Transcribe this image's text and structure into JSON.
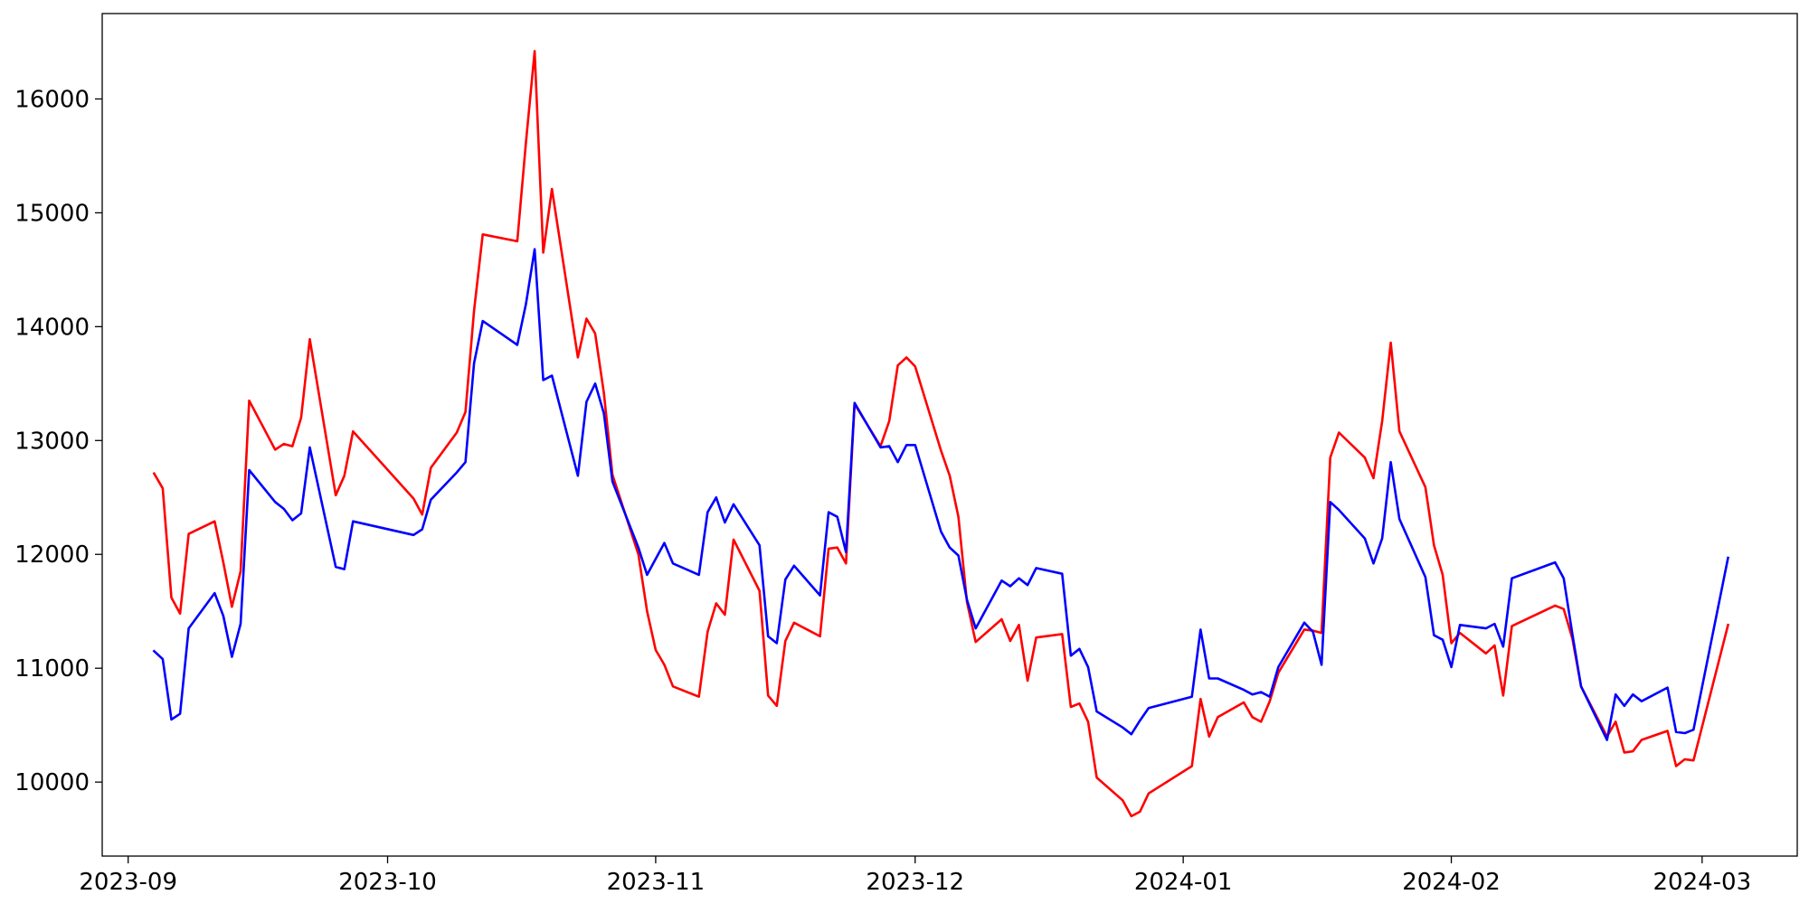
{
  "chart_data": {
    "type": "line",
    "title": "",
    "xlabel": "",
    "ylabel": "",
    "x_range": [
      "2023-08-29",
      "2024-03-12"
    ],
    "ylim": [
      9350,
      16750
    ],
    "grid": false,
    "legend": "none",
    "x_ticks": [
      "2023-09-01",
      "2023-10-01",
      "2023-11-01",
      "2023-12-01",
      "2024-01-01",
      "2024-02-01",
      "2024-03-01"
    ],
    "x_tick_labels": [
      "2023-09",
      "2023-10",
      "2023-11",
      "2023-12",
      "2024-01",
      "2024-02",
      "2024-03"
    ],
    "y_ticks": [
      10000,
      11000,
      12000,
      13000,
      14000,
      15000,
      16000
    ],
    "y_tick_labels": [
      "10000",
      "11000",
      "12000",
      "13000",
      "14000",
      "15000",
      "16000"
    ],
    "series": [
      {
        "color": "#ff0000",
        "points": [
          [
            "2023-09-04",
            12710
          ],
          [
            "2023-09-05",
            12580
          ],
          [
            "2023-09-06",
            11620
          ],
          [
            "2023-09-07",
            11480
          ],
          [
            "2023-09-08",
            12180
          ],
          [
            "2023-09-11",
            12290
          ],
          [
            "2023-09-12",
            11930
          ],
          [
            "2023-09-13",
            11540
          ],
          [
            "2023-09-14",
            11850
          ],
          [
            "2023-09-15",
            13350
          ],
          [
            "2023-09-18",
            12920
          ],
          [
            "2023-09-19",
            12970
          ],
          [
            "2023-09-20",
            12950
          ],
          [
            "2023-09-21",
            13200
          ],
          [
            "2023-09-22",
            13890
          ],
          [
            "2023-09-25",
            12520
          ],
          [
            "2023-09-26",
            12690
          ],
          [
            "2023-09-27",
            13080
          ],
          [
            "2023-10-04",
            12490
          ],
          [
            "2023-10-05",
            12350
          ],
          [
            "2023-10-06",
            12760
          ],
          [
            "2023-10-09",
            13070
          ],
          [
            "2023-10-10",
            13250
          ],
          [
            "2023-10-11",
            14140
          ],
          [
            "2023-10-12",
            14810
          ],
          [
            "2023-10-16",
            14750
          ],
          [
            "2023-10-17",
            15620
          ],
          [
            "2023-10-18",
            16420
          ],
          [
            "2023-10-19",
            14650
          ],
          [
            "2023-10-20",
            15210
          ],
          [
            "2023-10-23",
            13730
          ],
          [
            "2023-10-24",
            14070
          ],
          [
            "2023-10-25",
            13940
          ],
          [
            "2023-10-26",
            13420
          ],
          [
            "2023-10-27",
            12700
          ],
          [
            "2023-10-30",
            12000
          ],
          [
            "2023-10-31",
            11500
          ],
          [
            "2023-11-01",
            11160
          ],
          [
            "2023-11-02",
            11030
          ],
          [
            "2023-11-03",
            10840
          ],
          [
            "2023-11-06",
            10750
          ],
          [
            "2023-11-07",
            11320
          ],
          [
            "2023-11-08",
            11570
          ],
          [
            "2023-11-09",
            11470
          ],
          [
            "2023-11-10",
            12130
          ],
          [
            "2023-11-13",
            11680
          ],
          [
            "2023-11-14",
            10760
          ],
          [
            "2023-11-15",
            10670
          ],
          [
            "2023-11-16",
            11240
          ],
          [
            "2023-11-17",
            11400
          ],
          [
            "2023-11-20",
            11280
          ],
          [
            "2023-11-21",
            12050
          ],
          [
            "2023-11-22",
            12060
          ],
          [
            "2023-11-23",
            11920
          ],
          [
            "2023-11-24",
            13320
          ],
          [
            "2023-11-27",
            12950
          ],
          [
            "2023-11-28",
            13170
          ],
          [
            "2023-11-29",
            13660
          ],
          [
            "2023-11-30",
            13730
          ],
          [
            "2023-12-01",
            13650
          ],
          [
            "2023-12-04",
            12910
          ],
          [
            "2023-12-05",
            12690
          ],
          [
            "2023-12-06",
            12330
          ],
          [
            "2023-12-07",
            11580
          ],
          [
            "2023-12-08",
            11230
          ],
          [
            "2023-12-11",
            11430
          ],
          [
            "2023-12-12",
            11240
          ],
          [
            "2023-12-13",
            11380
          ],
          [
            "2023-12-14",
            10890
          ],
          [
            "2023-12-15",
            11270
          ],
          [
            "2023-12-18",
            11300
          ],
          [
            "2023-12-19",
            10660
          ],
          [
            "2023-12-20",
            10690
          ],
          [
            "2023-12-21",
            10530
          ],
          [
            "2023-12-22",
            10040
          ],
          [
            "2023-12-25",
            9840
          ],
          [
            "2023-12-26",
            9700
          ],
          [
            "2023-12-27",
            9740
          ],
          [
            "2023-12-28",
            9900
          ],
          [
            "2024-01-02",
            10140
          ],
          [
            "2024-01-03",
            10730
          ],
          [
            "2024-01-04",
            10400
          ],
          [
            "2024-01-05",
            10570
          ],
          [
            "2024-01-08",
            10700
          ],
          [
            "2024-01-09",
            10570
          ],
          [
            "2024-01-10",
            10530
          ],
          [
            "2024-01-11",
            10710
          ],
          [
            "2024-01-12",
            10960
          ],
          [
            "2024-01-15",
            11340
          ],
          [
            "2024-01-16",
            11330
          ],
          [
            "2024-01-17",
            11310
          ],
          [
            "2024-01-18",
            12850
          ],
          [
            "2024-01-19",
            13070
          ],
          [
            "2024-01-22",
            12850
          ],
          [
            "2024-01-23",
            12670
          ],
          [
            "2024-01-24",
            13170
          ],
          [
            "2024-01-25",
            13860
          ],
          [
            "2024-01-26",
            13080
          ],
          [
            "2024-01-29",
            12590
          ],
          [
            "2024-01-30",
            12080
          ],
          [
            "2024-01-31",
            11820
          ],
          [
            "2024-02-01",
            11220
          ],
          [
            "2024-02-02",
            11310
          ],
          [
            "2024-02-05",
            11130
          ],
          [
            "2024-02-06",
            11200
          ],
          [
            "2024-02-07",
            10760
          ],
          [
            "2024-02-08",
            11370
          ],
          [
            "2024-02-13",
            11550
          ],
          [
            "2024-02-14",
            11520
          ],
          [
            "2024-02-15",
            11260
          ],
          [
            "2024-02-16",
            10840
          ],
          [
            "2024-02-19",
            10400
          ],
          [
            "2024-02-20",
            10530
          ],
          [
            "2024-02-21",
            10260
          ],
          [
            "2024-02-22",
            10270
          ],
          [
            "2024-02-23",
            10370
          ],
          [
            "2024-02-26",
            10450
          ],
          [
            "2024-02-27",
            10140
          ],
          [
            "2024-02-28",
            10200
          ],
          [
            "2024-02-29",
            10190
          ],
          [
            "2024-03-04",
            11380
          ]
        ]
      },
      {
        "color": "#0000ff",
        "points": [
          [
            "2023-09-04",
            11150
          ],
          [
            "2023-09-05",
            11080
          ],
          [
            "2023-09-06",
            10550
          ],
          [
            "2023-09-07",
            10600
          ],
          [
            "2023-09-08",
            11350
          ],
          [
            "2023-09-11",
            11660
          ],
          [
            "2023-09-12",
            11460
          ],
          [
            "2023-09-13",
            11100
          ],
          [
            "2023-09-14",
            11390
          ],
          [
            "2023-09-15",
            12740
          ],
          [
            "2023-09-18",
            12460
          ],
          [
            "2023-09-19",
            12400
          ],
          [
            "2023-09-20",
            12300
          ],
          [
            "2023-09-21",
            12360
          ],
          [
            "2023-09-22",
            12940
          ],
          [
            "2023-09-25",
            11890
          ],
          [
            "2023-09-26",
            11870
          ],
          [
            "2023-09-27",
            12290
          ],
          [
            "2023-10-04",
            12170
          ],
          [
            "2023-10-05",
            12220
          ],
          [
            "2023-10-06",
            12480
          ],
          [
            "2023-10-09",
            12720
          ],
          [
            "2023-10-10",
            12810
          ],
          [
            "2023-10-11",
            13680
          ],
          [
            "2023-10-12",
            14050
          ],
          [
            "2023-10-16",
            13840
          ],
          [
            "2023-10-17",
            14200
          ],
          [
            "2023-10-18",
            14680
          ],
          [
            "2023-10-19",
            13530
          ],
          [
            "2023-10-20",
            13570
          ],
          [
            "2023-10-23",
            12690
          ],
          [
            "2023-10-24",
            13340
          ],
          [
            "2023-10-25",
            13500
          ],
          [
            "2023-10-26",
            13240
          ],
          [
            "2023-10-27",
            12640
          ],
          [
            "2023-10-30",
            12060
          ],
          [
            "2023-10-31",
            11820
          ],
          [
            "2023-11-01",
            11960
          ],
          [
            "2023-11-02",
            12100
          ],
          [
            "2023-11-03",
            11920
          ],
          [
            "2023-11-06",
            11820
          ],
          [
            "2023-11-07",
            12370
          ],
          [
            "2023-11-08",
            12500
          ],
          [
            "2023-11-09",
            12280
          ],
          [
            "2023-11-10",
            12440
          ],
          [
            "2023-11-13",
            12080
          ],
          [
            "2023-11-14",
            11280
          ],
          [
            "2023-11-15",
            11220
          ],
          [
            "2023-11-16",
            11780
          ],
          [
            "2023-11-17",
            11900
          ],
          [
            "2023-11-20",
            11640
          ],
          [
            "2023-11-21",
            12370
          ],
          [
            "2023-11-22",
            12330
          ],
          [
            "2023-11-23",
            12020
          ],
          [
            "2023-11-24",
            13330
          ],
          [
            "2023-11-27",
            12940
          ],
          [
            "2023-11-28",
            12950
          ],
          [
            "2023-11-29",
            12810
          ],
          [
            "2023-11-30",
            12960
          ],
          [
            "2023-12-01",
            12960
          ],
          [
            "2023-12-04",
            12200
          ],
          [
            "2023-12-05",
            12060
          ],
          [
            "2023-12-06",
            11990
          ],
          [
            "2023-12-07",
            11600
          ],
          [
            "2023-12-08",
            11350
          ],
          [
            "2023-12-11",
            11770
          ],
          [
            "2023-12-12",
            11720
          ],
          [
            "2023-12-13",
            11790
          ],
          [
            "2023-12-14",
            11730
          ],
          [
            "2023-12-15",
            11880
          ],
          [
            "2023-12-18",
            11830
          ],
          [
            "2023-12-19",
            11110
          ],
          [
            "2023-12-20",
            11170
          ],
          [
            "2023-12-21",
            11010
          ],
          [
            "2023-12-22",
            10620
          ],
          [
            "2023-12-25",
            10480
          ],
          [
            "2023-12-26",
            10420
          ],
          [
            "2023-12-27",
            10540
          ],
          [
            "2023-12-28",
            10650
          ],
          [
            "2024-01-02",
            10750
          ],
          [
            "2024-01-03",
            11340
          ],
          [
            "2024-01-04",
            10910
          ],
          [
            "2024-01-05",
            10910
          ],
          [
            "2024-01-08",
            10810
          ],
          [
            "2024-01-09",
            10770
          ],
          [
            "2024-01-10",
            10790
          ],
          [
            "2024-01-11",
            10750
          ],
          [
            "2024-01-12",
            11010
          ],
          [
            "2024-01-15",
            11400
          ],
          [
            "2024-01-16",
            11320
          ],
          [
            "2024-01-17",
            11030
          ],
          [
            "2024-01-18",
            12460
          ],
          [
            "2024-01-19",
            12390
          ],
          [
            "2024-01-22",
            12140
          ],
          [
            "2024-01-23",
            11920
          ],
          [
            "2024-01-24",
            12140
          ],
          [
            "2024-01-25",
            12810
          ],
          [
            "2024-01-26",
            12310
          ],
          [
            "2024-01-29",
            11800
          ],
          [
            "2024-01-30",
            11290
          ],
          [
            "2024-01-31",
            11250
          ],
          [
            "2024-02-01",
            11010
          ],
          [
            "2024-02-02",
            11380
          ],
          [
            "2024-02-05",
            11350
          ],
          [
            "2024-02-06",
            11390
          ],
          [
            "2024-02-07",
            11190
          ],
          [
            "2024-02-08",
            11790
          ],
          [
            "2024-02-13",
            11930
          ],
          [
            "2024-02-14",
            11790
          ],
          [
            "2024-02-15",
            11300
          ],
          [
            "2024-02-16",
            10840
          ],
          [
            "2024-02-19",
            10370
          ],
          [
            "2024-02-20",
            10770
          ],
          [
            "2024-02-21",
            10670
          ],
          [
            "2024-02-22",
            10770
          ],
          [
            "2024-02-23",
            10710
          ],
          [
            "2024-02-26",
            10830
          ],
          [
            "2024-02-27",
            10440
          ],
          [
            "2024-02-28",
            10430
          ],
          [
            "2024-02-29",
            10460
          ],
          [
            "2024-03-04",
            11970
          ]
        ]
      }
    ]
  }
}
